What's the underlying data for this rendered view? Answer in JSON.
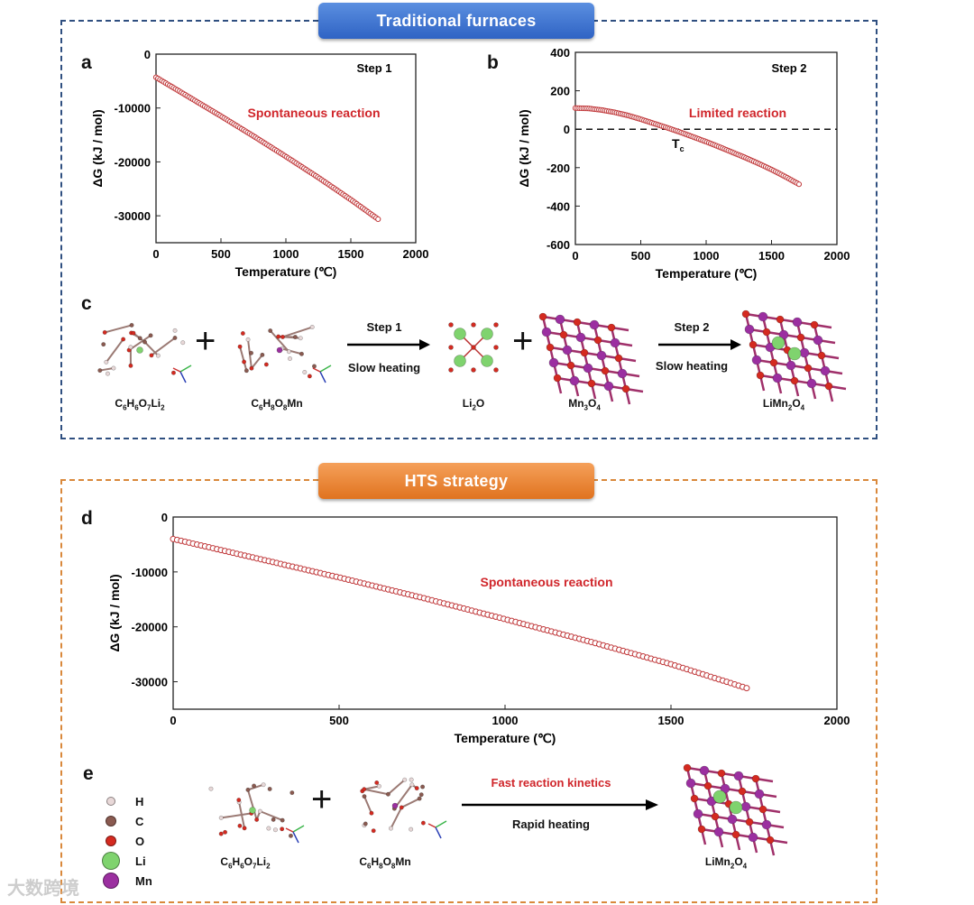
{
  "banners": {
    "traditional": "Traditional furnaces",
    "hts": "HTS strategy"
  },
  "panel_labels": {
    "a": "a",
    "b": "b",
    "c": "c",
    "d": "d",
    "e": "e"
  },
  "colors": {
    "marker": "#c0393b",
    "annotation": "#d0262b",
    "blue_box": "#2f4f80",
    "orange_box": "#d9883b",
    "li": "#7fd36e",
    "mn": "#9b2fa0",
    "o": "#d42a20",
    "c": "#8a5a50",
    "h": "#e8d8d8"
  },
  "chart_data": [
    {
      "id": "a",
      "type": "scatter",
      "xlabel": "Temperature (℃)",
      "ylabel": "ΔG (kJ / mol)",
      "xlim": [
        0,
        2000
      ],
      "ylim": [
        -35000,
        0
      ],
      "xticks": [
        0,
        500,
        1000,
        1500,
        2000
      ],
      "yticks": [
        0,
        -10000,
        -20000,
        -30000
      ],
      "annotations": {
        "step": "Step 1",
        "reaction": "Spontaneous reaction"
      },
      "series": [
        {
          "name": "Step 1",
          "x": [
            0,
            250,
            500,
            750,
            1000,
            1250,
            1500,
            1720
          ],
          "y": [
            -4300,
            -7900,
            -11500,
            -15200,
            -19000,
            -22900,
            -27000,
            -30800
          ]
        }
      ]
    },
    {
      "id": "b",
      "type": "scatter",
      "xlabel": "Temperature (℃)",
      "ylabel": "ΔG (kJ / mol)",
      "xlim": [
        0,
        2000
      ],
      "ylim": [
        -600,
        400
      ],
      "xticks": [
        0,
        500,
        1000,
        1500,
        2000
      ],
      "yticks": [
        400,
        200,
        0,
        -200,
        -400,
        -600
      ],
      "reference_line_y": 0,
      "annotations": {
        "step": "Step 2",
        "reaction": "Limited reaction",
        "tc_main": "T",
        "tc_sub": "c"
      },
      "series": [
        {
          "name": "Step 2",
          "x": [
            0,
            100,
            200,
            300,
            400,
            500,
            600,
            700,
            800,
            900,
            1000,
            1100,
            1200,
            1300,
            1400,
            1500,
            1600,
            1720
          ],
          "y": [
            110,
            108,
            100,
            88,
            72,
            52,
            30,
            8,
            -15,
            -40,
            -65,
            -92,
            -120,
            -148,
            -178,
            -210,
            -245,
            -290
          ]
        }
      ]
    },
    {
      "id": "d",
      "type": "scatter",
      "xlabel": "Temperature (℃)",
      "ylabel": "ΔG (kJ / mol)",
      "xlim": [
        0,
        2000
      ],
      "ylim": [
        -35000,
        0
      ],
      "xticks": [
        0,
        500,
        1000,
        1500,
        2000
      ],
      "yticks": [
        0,
        -10000,
        -20000,
        -30000
      ],
      "annotations": {
        "reaction": "Spontaneous reaction"
      },
      "series": [
        {
          "name": "HTS",
          "x": [
            0,
            250,
            500,
            750,
            1000,
            1250,
            1500,
            1730
          ],
          "y": [
            -4000,
            -7500,
            -11000,
            -14700,
            -18600,
            -22600,
            -26800,
            -31200
          ]
        }
      ]
    }
  ],
  "panel_c": {
    "reactant1": "C6H6O7Li2",
    "reactant2": "C6H8O8Mn",
    "step1": "Step 1",
    "step1_sub": "Slow heating",
    "intermediate1": "Li2O",
    "intermediate2": "Mn3O4",
    "step2": "Step 2",
    "step2_sub": "Slow heating",
    "product": "LiMn2O4",
    "plus": "+"
  },
  "panel_e": {
    "reactant1": "C6H6O7Li2",
    "reactant2": "C6H8O8Mn",
    "arrow_top": "Fast reaction kinetics",
    "arrow_bottom": "Rapid heating",
    "product": "LiMn2O4",
    "plus": "+",
    "legend": [
      {
        "symbol": "h",
        "label": "H"
      },
      {
        "symbol": "c",
        "label": "C"
      },
      {
        "symbol": "o",
        "label": "O"
      },
      {
        "symbol": "li",
        "label": "Li"
      },
      {
        "symbol": "mn",
        "label": "Mn"
      }
    ]
  },
  "watermark": "大数跨境"
}
